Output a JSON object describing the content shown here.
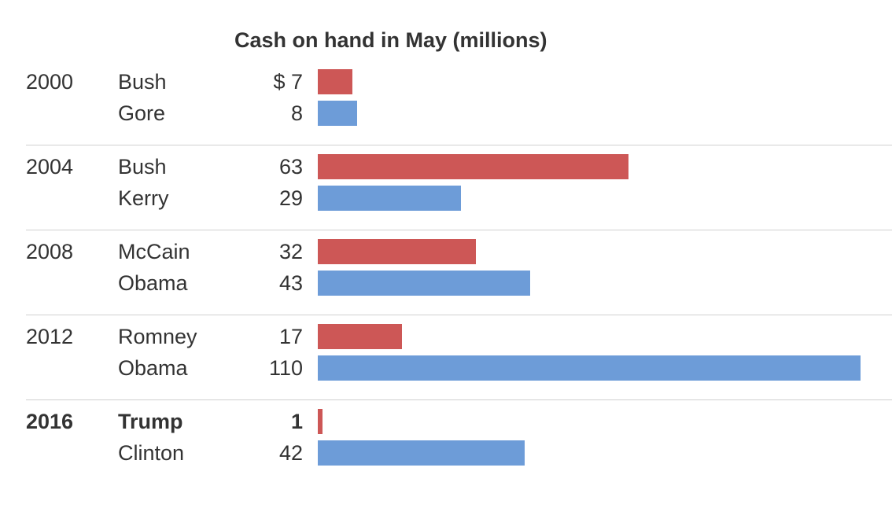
{
  "chart_data": {
    "type": "bar",
    "title": "Cash on hand in May (millions)",
    "unit_prefix": "$",
    "colors": {
      "republican": "#cd5756",
      "democrat": "#6d9cd8"
    },
    "xlim": [
      0,
      110
    ],
    "groups": [
      {
        "year": "2000",
        "entries": [
          {
            "candidate": "Bush",
            "value": 7,
            "label": "$  7",
            "party": "republican"
          },
          {
            "candidate": "Gore",
            "value": 8,
            "label": "8",
            "party": "democrat"
          }
        ]
      },
      {
        "year": "2004",
        "entries": [
          {
            "candidate": "Bush",
            "value": 63,
            "label": "63",
            "party": "republican"
          },
          {
            "candidate": "Kerry",
            "value": 29,
            "label": "29",
            "party": "democrat"
          }
        ]
      },
      {
        "year": "2008",
        "entries": [
          {
            "candidate": "McCain",
            "value": 32,
            "label": "32",
            "party": "republican"
          },
          {
            "candidate": "Obama",
            "value": 43,
            "label": "43",
            "party": "democrat"
          }
        ]
      },
      {
        "year": "2012",
        "entries": [
          {
            "candidate": "Romney",
            "value": 17,
            "label": "17",
            "party": "republican"
          },
          {
            "candidate": "Obama",
            "value": 110,
            "label": "110",
            "party": "democrat"
          }
        ]
      },
      {
        "year": "2016",
        "highlight": true,
        "entries": [
          {
            "candidate": "Trump",
            "value": 1,
            "label": "1",
            "party": "republican"
          },
          {
            "candidate": "Clinton",
            "value": 42,
            "label": "42",
            "party": "democrat"
          }
        ]
      }
    ]
  }
}
